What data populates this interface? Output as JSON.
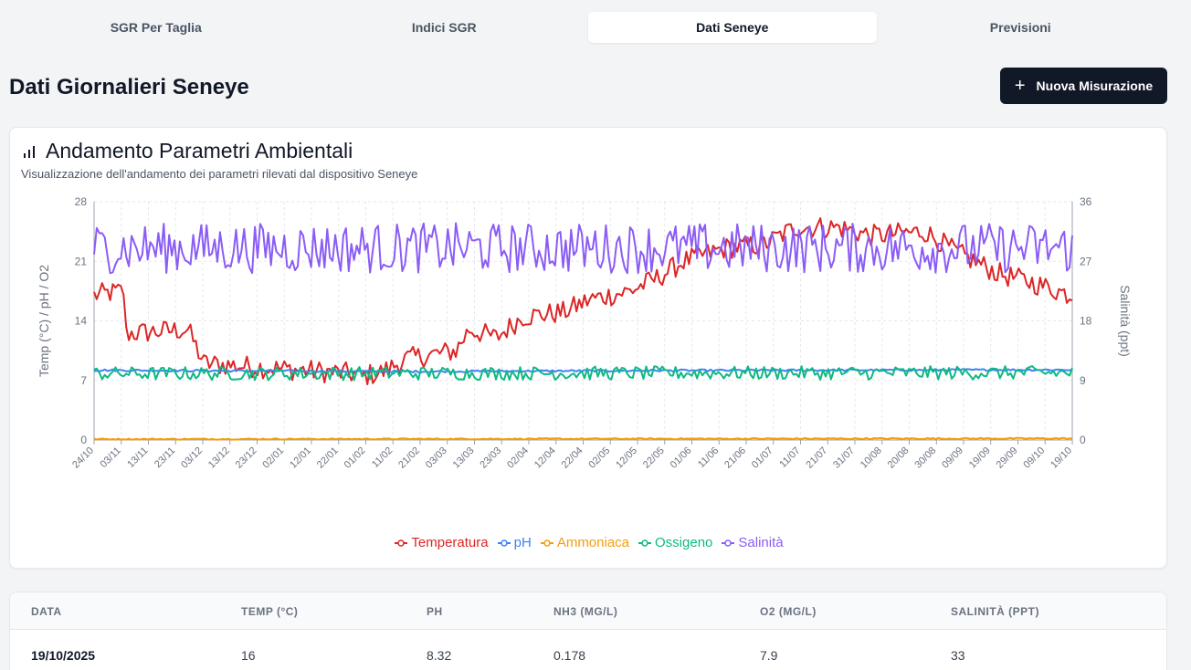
{
  "tabs": [
    {
      "label": "SGR Per Taglia",
      "active": false
    },
    {
      "label": "Indici SGR",
      "active": false
    },
    {
      "label": "Dati Seneye",
      "active": true
    },
    {
      "label": "Previsioni",
      "active": false
    }
  ],
  "page": {
    "title": "Dati Giornalieri Seneye",
    "new_button": "Nuova Misurazione",
    "new_button_icon": "plus-icon"
  },
  "card": {
    "title": "Andamento Parametri Ambientali",
    "title_icon": "bar-chart-icon",
    "subtitle": "Visualizzazione dell'andamento dei parametri rilevati dal dispositivo Seneye"
  },
  "chart_data": {
    "type": "line",
    "ylabel_left": "Temp (°C) / pH / O2",
    "ylabel_right": "Salinità (ppt)",
    "ylim_left": [
      0,
      28
    ],
    "ylim_right": [
      0,
      36
    ],
    "yticks_left": [
      0,
      7,
      14,
      21,
      28
    ],
    "yticks_right": [
      0,
      9,
      18,
      27,
      36
    ],
    "xticks": [
      "24/10",
      "03/11",
      "13/11",
      "23/11",
      "03/12",
      "13/12",
      "23/12",
      "02/01",
      "12/01",
      "22/01",
      "01/02",
      "11/02",
      "21/02",
      "03/03",
      "13/03",
      "23/03",
      "02/04",
      "12/04",
      "22/04",
      "02/05",
      "12/05",
      "22/05",
      "01/06",
      "11/06",
      "21/06",
      "01/07",
      "11/07",
      "21/07",
      "31/07",
      "10/08",
      "20/08",
      "30/08",
      "09/09",
      "19/09",
      "29/09",
      "09/10",
      "19/10"
    ],
    "grid": true,
    "legend_position": "bottom",
    "series": [
      {
        "name": "Temperatura",
        "axis": "left",
        "color": "#dc2626",
        "anchors": [
          [
            0,
            17
          ],
          [
            11,
            17.5
          ],
          [
            12,
            12.5
          ],
          [
            35,
            13
          ],
          [
            41,
            9
          ],
          [
            96,
            7.8
          ],
          [
            100,
            7.5
          ],
          [
            108,
            8
          ],
          [
            116,
            9.5
          ],
          [
            135,
            10.5
          ],
          [
            140,
            13
          ],
          [
            150,
            12
          ],
          [
            160,
            14.5
          ],
          [
            175,
            15
          ],
          [
            185,
            16.5
          ],
          [
            200,
            17.5
          ],
          [
            210,
            19
          ],
          [
            220,
            21
          ],
          [
            235,
            22.5
          ],
          [
            250,
            23
          ],
          [
            262,
            25
          ],
          [
            278,
            25
          ],
          [
            290,
            24
          ],
          [
            310,
            24.5
          ],
          [
            322,
            22
          ],
          [
            338,
            19.5
          ],
          [
            350,
            18.5
          ],
          [
            365,
            17
          ]
        ],
        "noise": 1.3
      },
      {
        "name": "pH",
        "axis": "left",
        "color": "#3b82f6",
        "anchors": [
          [
            0,
            8.2
          ],
          [
            120,
            8.05
          ],
          [
            200,
            8.15
          ],
          [
            270,
            8.2
          ],
          [
            365,
            8.25
          ]
        ],
        "noise": 0.12
      },
      {
        "name": "Ammoniaca",
        "axis": "left",
        "color": "#f59e0b",
        "anchors": [
          [
            0,
            0.1
          ],
          [
            365,
            0.18
          ]
        ],
        "noise": 0.07
      },
      {
        "name": "Ossigeno",
        "axis": "left",
        "color": "#10b981",
        "anchors": [
          [
            0,
            7.8
          ],
          [
            365,
            7.9
          ]
        ],
        "noise": 0.8
      },
      {
        "name": "Salinità",
        "axis": "right",
        "color": "#8b5cf6",
        "anchors": [
          [
            0,
            29
          ],
          [
            365,
            29
          ]
        ],
        "noise": 3.8
      }
    ]
  },
  "table": {
    "headers": [
      "Data",
      "Temp (°C)",
      "pH",
      "NH3 (mg/L)",
      "O2 (mg/L)",
      "Salinità (ppt)"
    ],
    "rows": [
      [
        "19/10/2025",
        "16",
        "8.32",
        "0.178",
        "7.9",
        "33"
      ]
    ]
  }
}
